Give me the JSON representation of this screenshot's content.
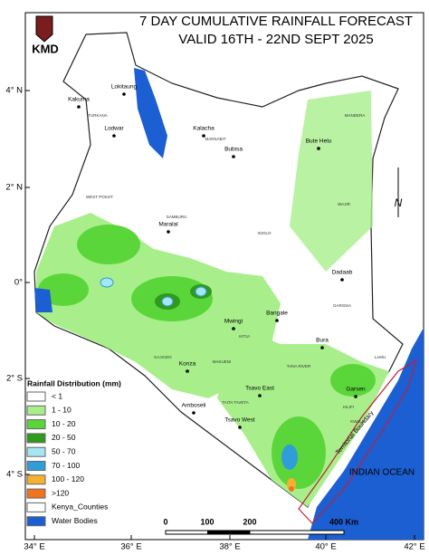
{
  "header": {
    "logo_text": "KMD",
    "title_line1": "7 DAY CUMULATIVE RAINFALL FORECAST",
    "title_line2": "VALID  16TH - 22ND SEPT 2025"
  },
  "latitude_labels": [
    "4° N",
    "2° N",
    "0°",
    "2° S",
    "4° S"
  ],
  "longitude_labels": [
    "34° E",
    "36° E",
    "38° E",
    "40° E",
    "42° E"
  ],
  "places": [
    "Kakuma",
    "Lokitaung",
    "Lodwar",
    "Kalacha",
    "Bubisa",
    "Bute Helu",
    "Maralal",
    "Dadaab",
    "Bangale",
    "Mwingi",
    "Bura",
    "Konza",
    "Tsavo East",
    "Garsen",
    "Amboseli",
    "Tsavo West"
  ],
  "counties": [
    "TURKANA",
    "MARSABIT",
    "MANDERA",
    "WAJIR",
    "SAMBURU",
    "ISIOLO",
    "GARISSA",
    "WEST POKOT",
    "TANA RIVER",
    "KITUI",
    "MAKUENI",
    "KAJIADO",
    "KWALE",
    "LAMU",
    "KILIFI",
    "TAITA TAVETA"
  ],
  "ocean_label": "INDIAN OCEAN",
  "boundary_label": "Territorial Boundary",
  "north_label": "N",
  "legend": {
    "title": "Rainfall Distribution (mm)",
    "items": [
      {
        "label": "< 1",
        "color": "#ffffff"
      },
      {
        "label": "1 - 10",
        "color": "#a8ef8c"
      },
      {
        "label": "10 - 20",
        "color": "#5bd63a"
      },
      {
        "label": "20 - 50",
        "color": "#2f9a1c"
      },
      {
        "label": "50 - 70",
        "color": "#a6e6f2"
      },
      {
        "label": "70 - 100",
        "color": "#2f9ed8"
      },
      {
        "label": "100 - 120",
        "color": "#f6b030"
      },
      {
        "label": ">120",
        "color": "#f07420"
      },
      {
        "label": "Kenya_Counties",
        "color": "#ffffff"
      },
      {
        "label": "Water Bodies",
        "color": "#1b5fd2"
      }
    ]
  },
  "scale_bar": {
    "labels": [
      "0",
      "100",
      "200",
      "400 Km"
    ]
  }
}
